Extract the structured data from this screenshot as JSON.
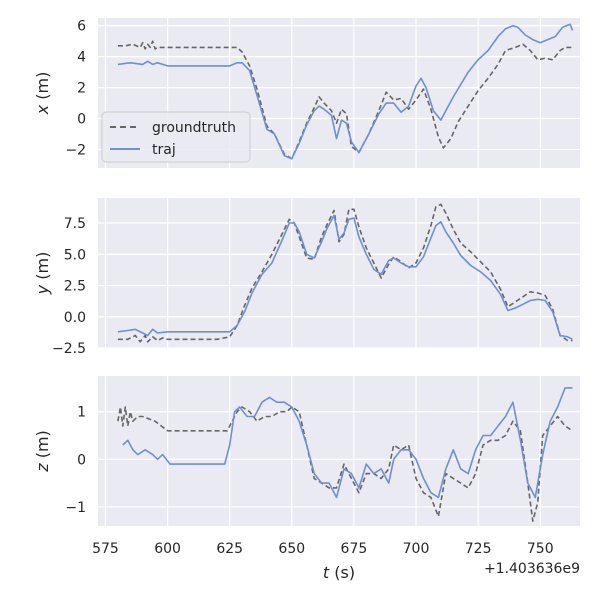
{
  "colors": {
    "panel_bg": "#EAEAF2",
    "grid": "#FFFFFF",
    "groundtruth": "#666666",
    "traj": "#6F8FCF",
    "text": "#262626"
  },
  "legend": {
    "entries": [
      "groundtruth",
      "traj"
    ],
    "location": "lower-left of top panel"
  },
  "x_axis": {
    "label_var": "t",
    "label_unit": " (s)",
    "ticks": [
      575,
      600,
      625,
      650,
      675,
      700,
      725,
      750
    ],
    "offset_text": "+1.403636e9",
    "range": [
      572,
      766
    ]
  },
  "chart_data": [
    {
      "type": "line",
      "ylabel_var": "x",
      "ylabel_unit": " (m)",
      "ylim": [
        -3.2,
        6.5
      ],
      "yticks": [
        -2,
        0,
        2,
        4,
        6
      ],
      "grid": true,
      "series": [
        {
          "name": "groundtruth",
          "style": "dashed",
          "x": [
            580,
            583,
            586,
            589,
            590,
            591,
            592,
            593,
            594,
            595,
            596,
            600,
            610,
            620,
            625,
            628,
            630,
            633,
            636,
            640,
            643,
            647,
            650,
            653,
            656,
            659,
            661,
            663,
            666,
            668,
            670,
            672,
            674,
            677,
            681,
            685,
            688,
            691,
            694,
            697,
            700,
            703,
            706,
            709,
            711,
            714,
            717,
            721,
            725,
            729,
            733,
            736,
            740,
            743,
            746,
            749,
            752,
            755,
            758,
            760,
            763
          ],
          "y": [
            4.7,
            4.7,
            4.8,
            4.6,
            4.9,
            4.5,
            4.8,
            4.6,
            5.0,
            4.5,
            4.6,
            4.6,
            4.6,
            4.6,
            4.6,
            4.6,
            4.3,
            3.4,
            1.9,
            -0.5,
            -1.0,
            -2.3,
            -2.6,
            -1.5,
            -0.3,
            0.7,
            1.4,
            1.0,
            0.5,
            -0.3,
            0.6,
            0.3,
            -1.8,
            -2.2,
            -1.0,
            0.5,
            1.7,
            1.2,
            1.3,
            0.6,
            1.2,
            1.9,
            0.6,
            -1.2,
            -1.9,
            -1.3,
            -0.2,
            0.8,
            1.8,
            2.6,
            3.5,
            4.4,
            4.6,
            4.8,
            4.4,
            3.8,
            3.9,
            3.8,
            4.4,
            4.6,
            4.6
          ]
        },
        {
          "name": "traj",
          "style": "solid",
          "x": [
            580,
            585,
            590,
            592,
            594,
            596,
            600,
            610,
            620,
            625,
            628,
            630,
            633,
            636,
            640,
            643,
            647,
            650,
            653,
            656,
            659,
            661,
            663,
            666,
            668,
            670,
            672,
            674,
            677,
            681,
            685,
            688,
            691,
            694,
            697,
            700,
            702,
            704,
            707,
            710,
            712,
            715,
            718,
            721,
            725,
            729,
            733,
            736,
            739,
            741,
            744,
            747,
            750,
            753,
            756,
            759,
            762,
            763
          ],
          "y": [
            3.5,
            3.6,
            3.5,
            3.7,
            3.5,
            3.6,
            3.4,
            3.4,
            3.4,
            3.4,
            3.6,
            3.6,
            3.1,
            1.5,
            -0.7,
            -1.0,
            -2.4,
            -2.6,
            -1.6,
            -0.4,
            0.5,
            0.8,
            0.6,
            0.2,
            -1.3,
            -0.1,
            -0.3,
            -1.5,
            -2.2,
            -1.0,
            0.3,
            1.0,
            1.0,
            0.4,
            0.8,
            2.1,
            2.6,
            2.0,
            0.5,
            -0.1,
            0.5,
            1.4,
            2.2,
            3.0,
            3.8,
            4.4,
            5.3,
            5.8,
            6.0,
            5.9,
            5.4,
            5.1,
            4.9,
            5.1,
            5.3,
            5.9,
            6.1,
            5.7
          ]
        }
      ]
    },
    {
      "type": "line",
      "ylabel_var": "y",
      "ylabel_unit": " (m)",
      "ylim": [
        -2.5,
        9.5
      ],
      "yticks": [
        -2.5,
        0.0,
        2.5,
        5.0,
        7.5
      ],
      "grid": true,
      "series": [
        {
          "name": "groundtruth",
          "style": "dashed",
          "x": [
            580,
            584,
            587,
            589,
            591,
            592,
            594,
            596,
            598,
            600,
            610,
            620,
            625,
            628,
            631,
            634,
            638,
            642,
            646,
            649,
            651,
            653,
            656,
            659,
            662,
            664,
            667,
            669,
            671,
            673,
            675,
            677,
            680,
            683,
            686,
            689,
            691,
            694,
            697,
            700,
            703,
            706,
            708,
            710,
            712,
            715,
            718,
            722,
            726,
            730,
            734,
            737,
            740,
            743,
            746,
            749,
            752,
            755,
            758,
            761,
            763
          ],
          "y": [
            -1.8,
            -1.8,
            -1.5,
            -2.0,
            -1.5,
            -2.0,
            -1.6,
            -1.9,
            -1.7,
            -1.8,
            -1.8,
            -1.8,
            -1.6,
            -0.7,
            0.9,
            2.3,
            3.6,
            5.0,
            6.6,
            7.8,
            7.5,
            6.4,
            4.7,
            4.6,
            6.4,
            7.3,
            8.5,
            6.0,
            6.6,
            8.6,
            8.6,
            7.2,
            5.5,
            4.3,
            3.1,
            4.2,
            4.8,
            4.4,
            3.9,
            4.3,
            5.5,
            7.3,
            8.8,
            9.0,
            8.3,
            7.0,
            5.9,
            5.2,
            4.4,
            3.6,
            2.2,
            0.8,
            1.2,
            1.6,
            2.0,
            1.9,
            1.7,
            0.6,
            -1.5,
            -1.9,
            -1.9
          ]
        },
        {
          "name": "traj",
          "style": "solid",
          "x": [
            580,
            584,
            587,
            590,
            592,
            594,
            596,
            600,
            610,
            620,
            625,
            628,
            631,
            634,
            638,
            642,
            646,
            649,
            651,
            653,
            656,
            659,
            662,
            664,
            667,
            669,
            671,
            673,
            675,
            677,
            680,
            683,
            686,
            689,
            691,
            694,
            697,
            700,
            703,
            706,
            708,
            710,
            712,
            715,
            718,
            722,
            726,
            730,
            734,
            737,
            740,
            743,
            746,
            749,
            752,
            755,
            758,
            761,
            763
          ],
          "y": [
            -1.2,
            -1.1,
            -1.0,
            -1.3,
            -1.5,
            -1.0,
            -1.3,
            -1.2,
            -1.2,
            -1.2,
            -1.2,
            -0.7,
            0.4,
            1.9,
            3.4,
            4.3,
            6.1,
            7.5,
            7.5,
            6.8,
            5.0,
            4.7,
            6.0,
            7.0,
            8.1,
            6.2,
            6.7,
            7.8,
            7.9,
            6.4,
            5.0,
            3.8,
            3.4,
            4.5,
            4.7,
            4.3,
            4.0,
            4.0,
            4.8,
            6.3,
            7.3,
            7.6,
            6.8,
            5.9,
            4.9,
            4.1,
            3.6,
            2.9,
            1.8,
            0.5,
            0.7,
            1.0,
            1.3,
            1.4,
            1.3,
            0.4,
            -1.5,
            -1.6,
            -1.8
          ]
        }
      ]
    },
    {
      "type": "line",
      "ylabel_var": "z",
      "ylabel_unit": " (m)",
      "ylim": [
        -1.4,
        1.75
      ],
      "yticks": [
        -1,
        0,
        1
      ],
      "grid": true,
      "series": [
        {
          "name": "groundtruth",
          "style": "dashed",
          "x": [
            580,
            581,
            582,
            583,
            584,
            585,
            586,
            588,
            590,
            595,
            600,
            610,
            620,
            624,
            626,
            628,
            630,
            633,
            636,
            639,
            642,
            645,
            648,
            650,
            653,
            656,
            659,
            662,
            665,
            668,
            671,
            674,
            677,
            680,
            683,
            686,
            689,
            691,
            694,
            697,
            700,
            703,
            706,
            709,
            712,
            715,
            718,
            721,
            724,
            727,
            730,
            733,
            736,
            739,
            742,
            745,
            747,
            749,
            751,
            754,
            757,
            760,
            763
          ],
          "y": [
            0.8,
            1.1,
            0.7,
            1.1,
            0.7,
            1.0,
            0.8,
            0.9,
            0.9,
            0.8,
            0.6,
            0.6,
            0.6,
            0.6,
            0.8,
            1.0,
            1.1,
            1.0,
            0.8,
            0.9,
            0.9,
            1.0,
            1.0,
            1.1,
            1.0,
            0.3,
            -0.4,
            -0.5,
            -0.6,
            -0.6,
            -0.1,
            -0.4,
            -0.7,
            -0.3,
            -0.3,
            -0.4,
            -0.2,
            0.3,
            0.2,
            0.3,
            -0.4,
            -0.7,
            -0.8,
            -1.2,
            -0.3,
            -0.4,
            -0.5,
            -0.6,
            -0.3,
            0.3,
            0.4,
            0.4,
            0.5,
            0.8,
            0.6,
            -0.5,
            -1.3,
            -0.9,
            0.5,
            0.7,
            0.9,
            0.7,
            0.6
          ]
        },
        {
          "name": "traj",
          "style": "solid",
          "x": [
            582,
            584,
            586,
            588,
            591,
            594,
            596,
            598,
            601,
            610,
            620,
            623,
            625,
            627,
            629,
            632,
            635,
            638,
            641,
            644,
            647,
            650,
            653,
            656,
            659,
            662,
            665,
            668,
            671,
            674,
            677,
            680,
            683,
            686,
            689,
            691,
            694,
            697,
            700,
            703,
            706,
            709,
            712,
            715,
            718,
            721,
            724,
            727,
            730,
            733,
            736,
            739,
            742,
            745,
            748,
            751,
            754,
            757,
            760,
            763
          ],
          "y": [
            0.3,
            0.4,
            0.2,
            0.1,
            0.2,
            0.1,
            0.0,
            0.1,
            -0.1,
            -0.1,
            -0.1,
            -0.1,
            0.3,
            1.0,
            1.1,
            0.9,
            0.9,
            1.2,
            1.3,
            1.2,
            1.2,
            1.1,
            0.8,
            0.3,
            -0.3,
            -0.5,
            -0.5,
            -0.8,
            -0.2,
            -0.3,
            -0.6,
            -0.1,
            -0.3,
            -0.2,
            -0.5,
            0.0,
            0.2,
            0.2,
            0.0,
            -0.4,
            -0.7,
            -0.8,
            -0.2,
            0.2,
            -0.2,
            -0.3,
            0.2,
            0.5,
            0.5,
            0.7,
            0.9,
            1.2,
            0.4,
            -0.5,
            -0.8,
            0.1,
            0.8,
            1.1,
            1.5,
            1.5
          ]
        }
      ]
    }
  ]
}
